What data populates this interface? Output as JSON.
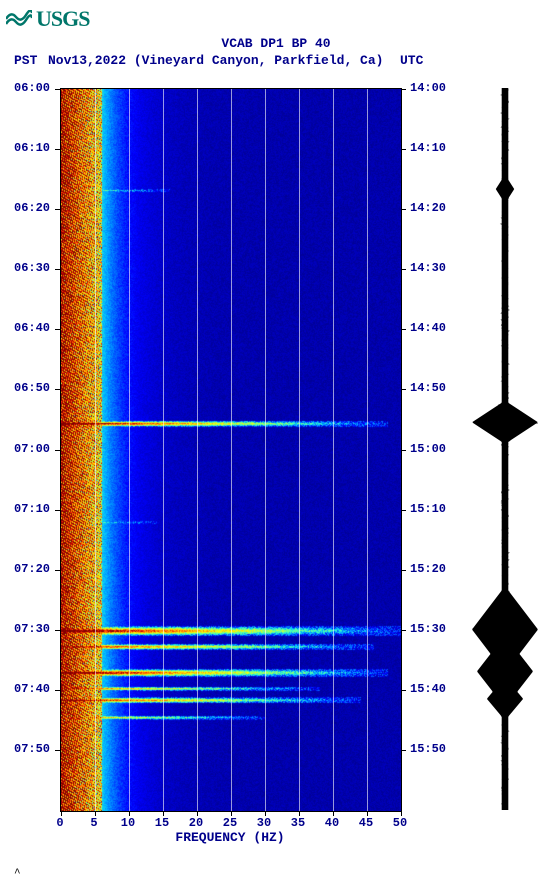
{
  "logo_text": "USGS",
  "title": "VCAB DP1 BP 40",
  "pst_label": "PST",
  "utc_label": "UTC",
  "date_label": "Nov13,2022 (Vineyard Canyon, Parkfield, Ca)",
  "x_axis_label": "FREQUENCY (HZ)",
  "spectrogram": {
    "type": "spectrogram",
    "xlim": [
      0,
      50
    ],
    "x_ticks": [
      0,
      5,
      10,
      15,
      20,
      25,
      30,
      35,
      40,
      45,
      50
    ],
    "time_start_pst": "06:00",
    "time_end_pst": "08:00",
    "y_ticks_left": [
      "06:00",
      "06:10",
      "06:20",
      "06:30",
      "06:40",
      "06:50",
      "07:00",
      "07:10",
      "07:20",
      "07:30",
      "07:40",
      "07:50"
    ],
    "y_ticks_right": [
      "14:00",
      "14:10",
      "14:20",
      "14:30",
      "14:40",
      "14:50",
      "15:00",
      "15:10",
      "15:20",
      "15:30",
      "15:40",
      "15:50"
    ],
    "y_tick_positions": [
      0,
      60,
      120,
      180,
      240,
      300,
      361,
      421,
      481,
      541,
      601,
      661
    ],
    "grid_lines_x": [
      5,
      10,
      15,
      20,
      25,
      30,
      35,
      40,
      45
    ],
    "colormap": [
      "#00003f",
      "#000080",
      "#0000c0",
      "#0000ff",
      "#0060ff",
      "#00c0ff",
      "#40ffbf",
      "#80ff80",
      "#c0ff40",
      "#ffff00",
      "#ffc000",
      "#ff8000",
      "#ff4000",
      "#c00000",
      "#800000"
    ],
    "background_color": "#0000a0",
    "low_freq_hot_edge_hz": 6,
    "event_bands": [
      {
        "time_frac": 0.463,
        "thickness": 6,
        "intensity": 1.0,
        "max_hz": 48
      },
      {
        "time_frac": 0.75,
        "thickness": 10,
        "intensity": 1.0,
        "max_hz": 50
      },
      {
        "time_frac": 0.772,
        "thickness": 6,
        "intensity": 0.9,
        "max_hz": 46
      },
      {
        "time_frac": 0.808,
        "thickness": 8,
        "intensity": 1.0,
        "max_hz": 48
      },
      {
        "time_frac": 0.83,
        "thickness": 4,
        "intensity": 0.8,
        "max_hz": 38
      },
      {
        "time_frac": 0.846,
        "thickness": 6,
        "intensity": 0.9,
        "max_hz": 44
      },
      {
        "time_frac": 0.87,
        "thickness": 4,
        "intensity": 0.7,
        "max_hz": 30
      },
      {
        "time_frac": 0.14,
        "thickness": 3,
        "intensity": 0.4,
        "max_hz": 16
      },
      {
        "time_frac": 0.6,
        "thickness": 3,
        "intensity": 0.4,
        "max_hz": 14
      }
    ]
  },
  "seismogram": {
    "color": "#000000",
    "baseline_amp": 0.1,
    "events": [
      {
        "time_frac": 0.463,
        "amp": 1.0,
        "dur": 0.03
      },
      {
        "time_frac": 0.75,
        "amp": 1.0,
        "dur": 0.06
      },
      {
        "time_frac": 0.808,
        "amp": 0.85,
        "dur": 0.05
      },
      {
        "time_frac": 0.846,
        "amp": 0.55,
        "dur": 0.03
      },
      {
        "time_frac": 0.14,
        "amp": 0.28,
        "dur": 0.02
      }
    ]
  },
  "colors": {
    "title": "#00008b",
    "logo": "#00766a",
    "axis": "#000000",
    "background": "#ffffff"
  },
  "footer_mark": "^"
}
